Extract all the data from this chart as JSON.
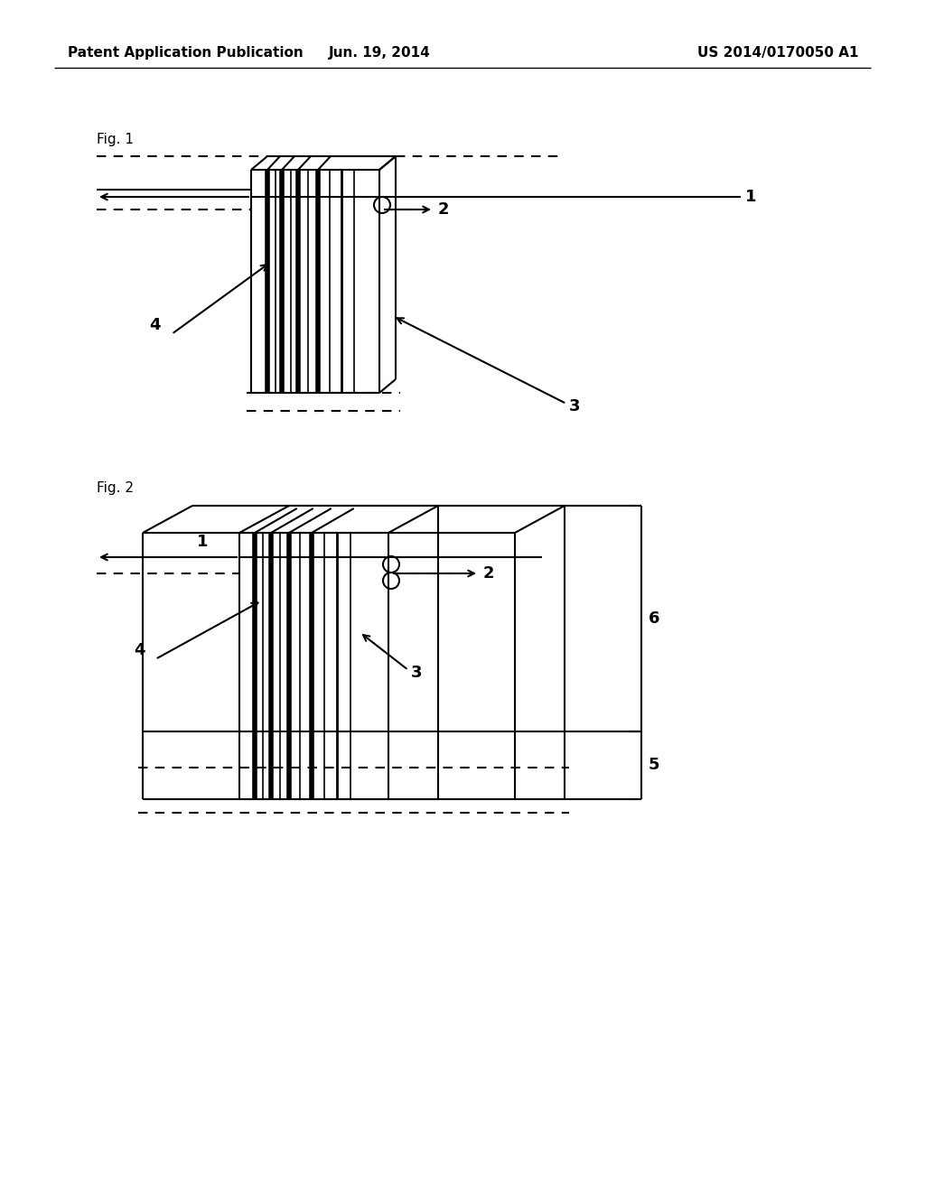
{
  "bg_color": "#ffffff",
  "header_left": "Patent Application Publication",
  "header_mid": "Jun. 19, 2014",
  "header_right": "US 2014/0170050 A1",
  "fig1_label": "Fig. 1",
  "fig2_label": "Fig. 2"
}
